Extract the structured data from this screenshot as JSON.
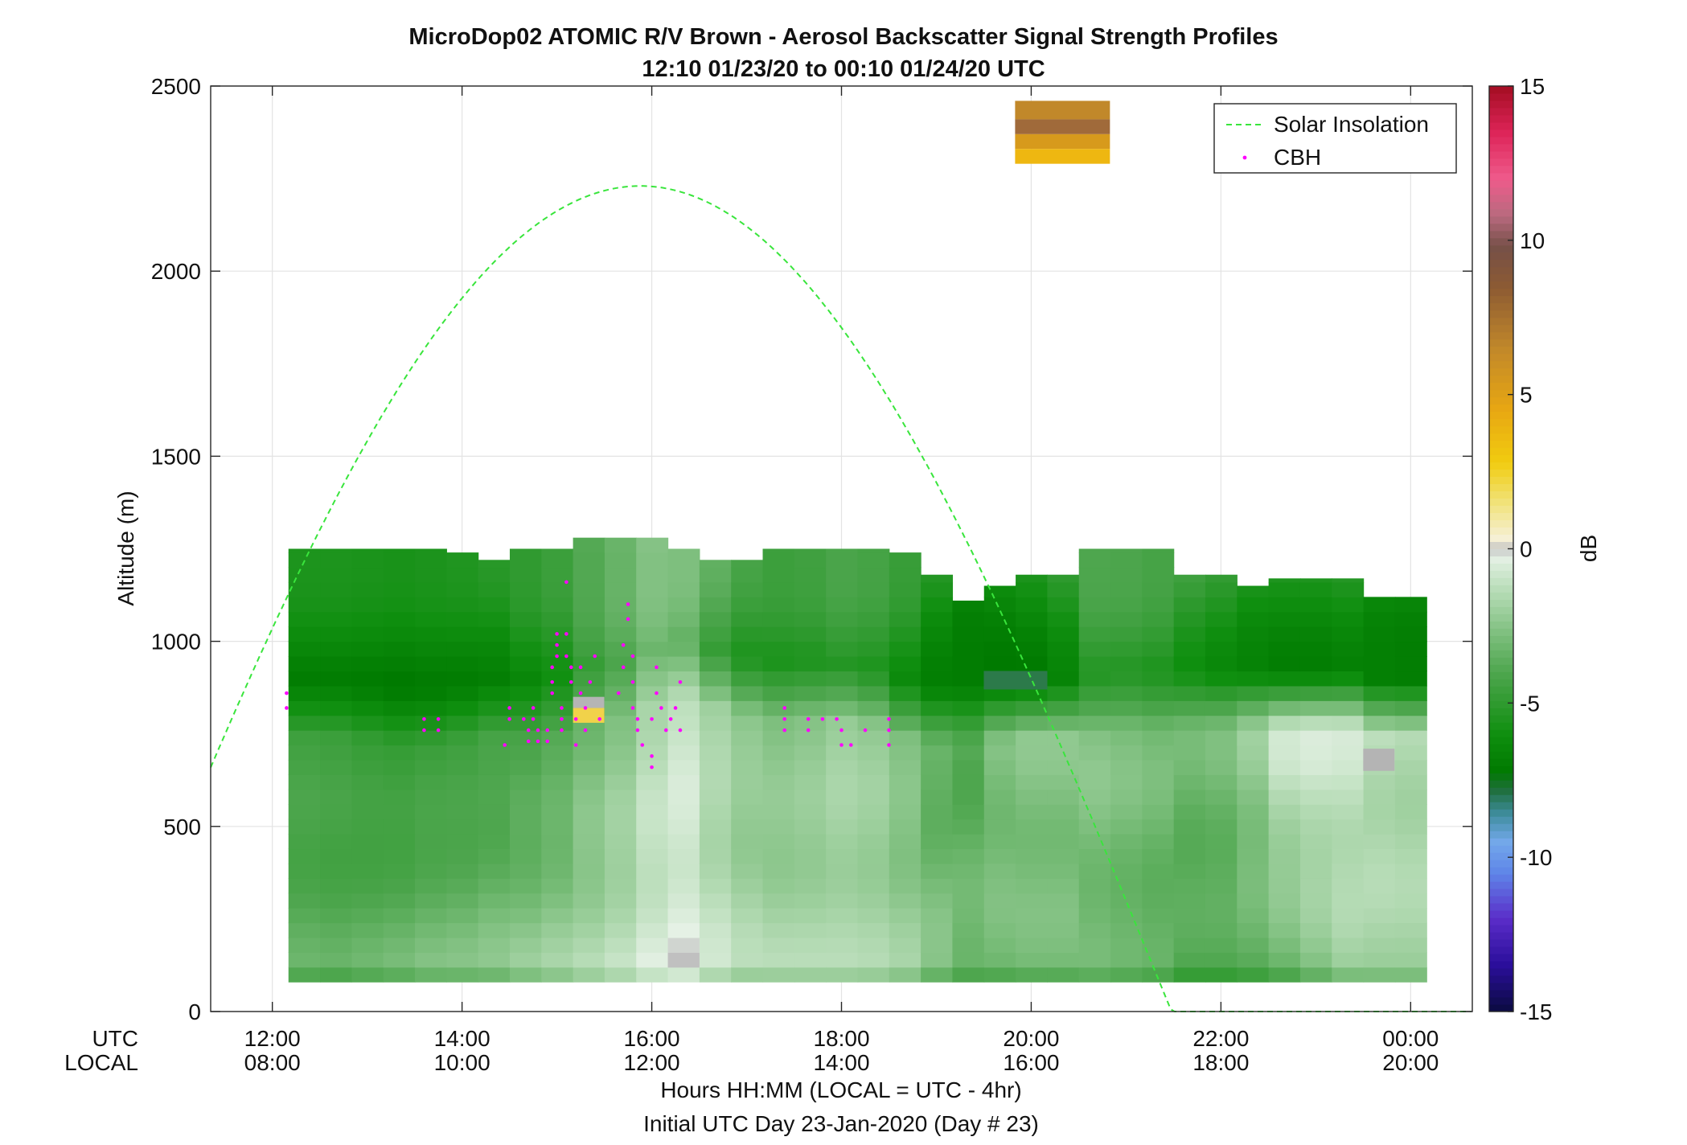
{
  "chart_data": {
    "type": "heatmap",
    "title": "MicroDop02 ATOMIC R/V Brown - Aerosol Backscatter Signal Strength Profiles",
    "subtitle": "12:10 01/23/20 to 00:10 01/24/20  UTC",
    "ylabel": "Altitude (m)",
    "xlabel": "Hours HH:MM  (LOCAL = UTC - 4hr)",
    "xlabel2": "Initial UTC Day 23-Jan-2020 (Day # 23)",
    "row_label_utc": "UTC",
    "row_label_local": "LOCAL",
    "xlim_hours": [
      11.35,
      24.65
    ],
    "ylim": [
      0,
      2500
    ],
    "yticks": [
      0,
      500,
      1000,
      1500,
      2000,
      2500
    ],
    "xticks": [
      {
        "h": 12,
        "utc": "12:00",
        "local": "08:00"
      },
      {
        "h": 14,
        "utc": "14:00",
        "local": "10:00"
      },
      {
        "h": 16,
        "utc": "16:00",
        "local": "12:00"
      },
      {
        "h": 18,
        "utc": "18:00",
        "local": "14:00"
      },
      {
        "h": 20,
        "utc": "20:00",
        "local": "16:00"
      },
      {
        "h": 22,
        "utc": "22:00",
        "local": "18:00"
      },
      {
        "h": 24,
        "utc": "00:00",
        "local": "20:00"
      }
    ],
    "grid": true,
    "legend": {
      "position": "top-right",
      "entries": [
        "Solar Insolation",
        "CBH"
      ]
    },
    "colorbar": {
      "label": "dB",
      "range": [
        -15,
        15
      ],
      "ticks": [
        -15,
        -10,
        -5,
        0,
        5,
        10,
        15
      ]
    },
    "profiles": {
      "start_hour": 12.17,
      "step_hours": 0.3333,
      "altitude_base_m": 80,
      "columns": [
        {
          "top": 1250,
          "surf": -3.5,
          "pbl": -4.5,
          "pblTop": 800,
          "cloud": -6.8
        },
        {
          "top": 1250,
          "surf": -3.6,
          "pbl": -4.6,
          "pblTop": 800,
          "cloud": -6.8
        },
        {
          "top": 1250,
          "surf": -3.4,
          "pbl": -4.8,
          "pblTop": 790,
          "cloud": -6.9
        },
        {
          "top": 1250,
          "surf": -3.2,
          "pbl": -4.9,
          "pblTop": 780,
          "cloud": -7.0
        },
        {
          "top": 1250,
          "surf": -2.9,
          "pbl": -4.7,
          "pblTop": 780,
          "cloud": -6.9
        },
        {
          "top": 1240,
          "surf": -2.8,
          "pbl": -4.6,
          "pblTop": 790,
          "cloud": -6.8
        },
        {
          "top": 1220,
          "surf": -2.6,
          "pbl": -4.4,
          "pblTop": 800,
          "cloud": -6.6
        },
        {
          "top": 1250,
          "surf": -2.3,
          "pbl": -4.2,
          "pblTop": 800,
          "cloud": -6.2
        },
        {
          "top": 1250,
          "surf": -2.0,
          "pbl": -3.8,
          "pblTop": 810,
          "cloud": -5.8
        },
        {
          "top": 1280,
          "surf": -1.6,
          "pbl": -3.0,
          "pblTop": 840,
          "cloud": -4.8
        },
        {
          "top": 1280,
          "surf": -1.2,
          "pbl": -2.4,
          "pblTop": 850,
          "cloud": -4.2
        },
        {
          "top": 1280,
          "surf": -0.6,
          "pbl": -1.4,
          "pblTop": 880,
          "cloud": -3.4
        },
        {
          "top": 1250,
          "surf": -0.3,
          "pbl": -0.9,
          "pblTop": 900,
          "cloud": -3.6
        },
        {
          "top": 1220,
          "surf": -1.0,
          "pbl": -1.8,
          "pblTop": 880,
          "cloud": -4.6
        },
        {
          "top": 1220,
          "surf": -1.5,
          "pbl": -2.4,
          "pblTop": 860,
          "cloud": -5.4
        },
        {
          "top": 1250,
          "surf": -1.6,
          "pbl": -2.6,
          "pblTop": 850,
          "cloud": -5.6
        },
        {
          "top": 1250,
          "surf": -1.6,
          "pbl": -2.4,
          "pblTop": 850,
          "cloud": -5.5
        },
        {
          "top": 1250,
          "surf": -1.6,
          "pbl": -2.0,
          "pblTop": 840,
          "cloud": -5.2
        },
        {
          "top": 1250,
          "surf": -1.7,
          "pbl": -2.2,
          "pblTop": 830,
          "cloud": -5.4
        },
        {
          "top": 1240,
          "surf": -2.0,
          "pbl": -2.8,
          "pblTop": 800,
          "cloud": -6.0
        },
        {
          "top": 1180,
          "surf": -2.6,
          "pbl": -3.6,
          "pblTop": 780,
          "cloud": -6.8
        },
        {
          "top": 1110,
          "surf": -3.0,
          "pbl": -3.8,
          "pblTop": 780,
          "cloud": -7.3
        },
        {
          "top": 1150,
          "surf": -3.0,
          "pbl": -2.8,
          "pblTop": 790,
          "cloud": -7.2
        },
        {
          "top": 1180,
          "surf": -3.0,
          "pbl": -2.6,
          "pblTop": 800,
          "cloud": -7.0
        },
        {
          "top": 1180,
          "surf": -3.0,
          "pbl": -2.6,
          "pblTop": 800,
          "cloud": -6.4
        },
        {
          "top": 1250,
          "surf": -3.2,
          "pbl": -2.6,
          "pblTop": 810,
          "cloud": -5.2
        },
        {
          "top": 1250,
          "surf": -3.4,
          "pbl": -2.8,
          "pblTop": 820,
          "cloud": -5.2
        },
        {
          "top": 1250,
          "surf": -3.6,
          "pbl": -3.0,
          "pblTop": 820,
          "cloud": -5.4
        },
        {
          "top": 1180,
          "surf": -4.0,
          "pbl": -3.2,
          "pblTop": 820,
          "cloud": -5.8
        },
        {
          "top": 1180,
          "surf": -4.0,
          "pbl": -3.0,
          "pblTop": 820,
          "cloud": -6.2
        },
        {
          "top": 1150,
          "surf": -3.6,
          "pbl": -2.2,
          "pblTop": 820,
          "cloud": -6.6
        },
        {
          "top": 1170,
          "surf": -3.2,
          "pbl": -1.0,
          "pblTop": 820,
          "cloud": -6.8
        },
        {
          "top": 1170,
          "surf": -2.6,
          "pbl": -0.8,
          "pblTop": 820,
          "cloud": -6.8
        },
        {
          "top": 1170,
          "surf": -2.0,
          "pbl": -0.9,
          "pblTop": 820,
          "cloud": -6.6
        },
        {
          "top": 1120,
          "surf": -1.8,
          "pbl": -1.4,
          "pblTop": 800,
          "cloud": -7.0
        },
        {
          "top": 1120,
          "surf": -1.8,
          "pbl": -1.6,
          "pblTop": 800,
          "cloud": -7.1
        }
      ],
      "cbh_hours_m": [
        [
          12.15,
          860
        ],
        [
          12.15,
          820
        ],
        [
          13.6,
          790
        ],
        [
          13.6,
          760
        ],
        [
          13.75,
          790
        ],
        [
          13.75,
          760
        ],
        [
          14.45,
          720
        ],
        [
          14.5,
          790
        ],
        [
          14.5,
          820
        ],
        [
          14.65,
          790
        ],
        [
          14.7,
          760
        ],
        [
          14.7,
          730
        ],
        [
          14.75,
          820
        ],
        [
          14.75,
          790
        ],
        [
          14.8,
          760
        ],
        [
          14.8,
          730
        ],
        [
          14.9,
          760
        ],
        [
          14.9,
          730
        ],
        [
          14.95,
          860
        ],
        [
          14.95,
          890
        ],
        [
          14.95,
          930
        ],
        [
          15.0,
          960
        ],
        [
          15.0,
          990
        ],
        [
          15.0,
          1020
        ],
        [
          15.05,
          790
        ],
        [
          15.05,
          820
        ],
        [
          15.05,
          760
        ],
        [
          15.1,
          960
        ],
        [
          15.1,
          1020
        ],
        [
          15.1,
          1160
        ],
        [
          15.15,
          890
        ],
        [
          15.15,
          930
        ],
        [
          15.2,
          790
        ],
        [
          15.2,
          720
        ],
        [
          15.25,
          860
        ],
        [
          15.25,
          930
        ],
        [
          15.3,
          820
        ],
        [
          15.3,
          760
        ],
        [
          15.35,
          890
        ],
        [
          15.4,
          960
        ],
        [
          15.45,
          790
        ],
        [
          15.65,
          860
        ],
        [
          15.7,
          930
        ],
        [
          15.7,
          990
        ],
        [
          15.75,
          1060
        ],
        [
          15.75,
          1100
        ],
        [
          15.8,
          960
        ],
        [
          15.8,
          890
        ],
        [
          15.8,
          820
        ],
        [
          15.85,
          790
        ],
        [
          15.85,
          760
        ],
        [
          15.9,
          720
        ],
        [
          16.0,
          690
        ],
        [
          16.0,
          660
        ],
        [
          16.0,
          790
        ],
        [
          16.05,
          860
        ],
        [
          16.05,
          930
        ],
        [
          16.1,
          820
        ],
        [
          16.15,
          760
        ],
        [
          16.2,
          790
        ],
        [
          16.25,
          820
        ],
        [
          16.3,
          760
        ],
        [
          16.3,
          890
        ],
        [
          17.4,
          820
        ],
        [
          17.4,
          790
        ],
        [
          17.4,
          760
        ],
        [
          17.65,
          790
        ],
        [
          17.65,
          760
        ],
        [
          17.8,
          790
        ],
        [
          17.95,
          790
        ],
        [
          18.0,
          760
        ],
        [
          18.0,
          720
        ],
        [
          18.1,
          720
        ],
        [
          18.25,
          760
        ],
        [
          18.5,
          790
        ],
        [
          18.5,
          760
        ],
        [
          18.5,
          720
        ]
      ]
    }
  }
}
